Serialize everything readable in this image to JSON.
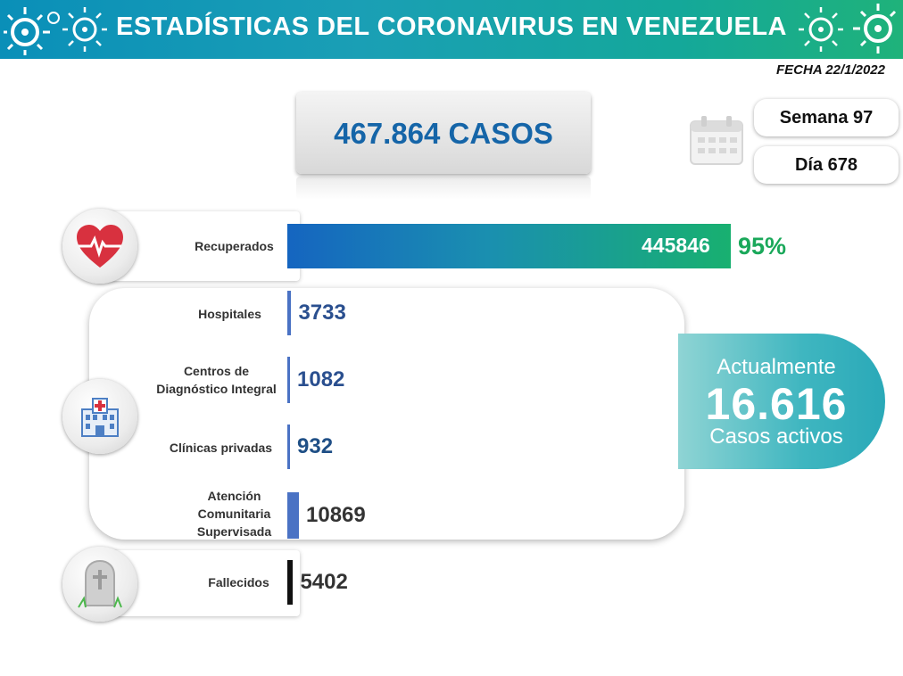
{
  "header": {
    "title": "ESTADÍSTICAS DEL CORONAVIRUS EN VENEZUELA"
  },
  "date": "FECHA 22/1/2022",
  "total": {
    "label": "467.864 CASOS"
  },
  "calendar": {
    "week": "Semana 97",
    "day": "Día 678"
  },
  "colors": {
    "banner_start": "#0a8fb8",
    "banner_end": "#1fb27a",
    "recovered_pct": "#1aa85a",
    "hospital_blue": "#2a4f8f",
    "bar_blue": "#4a72c4",
    "deaths_bar": "#111111"
  },
  "icons": {
    "recovered": "heart-pulse-icon",
    "hospital": "hospital-icon",
    "deaths": "tombstone-icon",
    "calendar": "calendar-icon",
    "virus": "virus-icon"
  },
  "active": {
    "line1": "Actualmente",
    "value": "16.616",
    "line2": "Casos activos"
  },
  "chart_data": {
    "type": "bar",
    "orientation": "horizontal",
    "categories": [
      "Recuperados",
      "Hospitales",
      "Centros de Diagnóstico Integral",
      "Clínicas privadas",
      "Atención Comunitaria Supervisada",
      "Fallecidos"
    ],
    "values": [
      445846,
      3733,
      1082,
      932,
      10869,
      5402
    ],
    "value_labels": [
      "445846",
      "3733",
      "1082",
      "932",
      "10869",
      "5402"
    ],
    "recovered_pct": "95%",
    "labels": {
      "recovered": "Recuperados",
      "hospitals": "Hospitales",
      "cdi": [
        "Centros de",
        "Diagnóstico Integral"
      ],
      "clinics": "Clínicas privadas",
      "acs": [
        "Atención",
        "Comunitaria",
        "Supervisada"
      ],
      "deaths": "Fallecidos"
    }
  }
}
